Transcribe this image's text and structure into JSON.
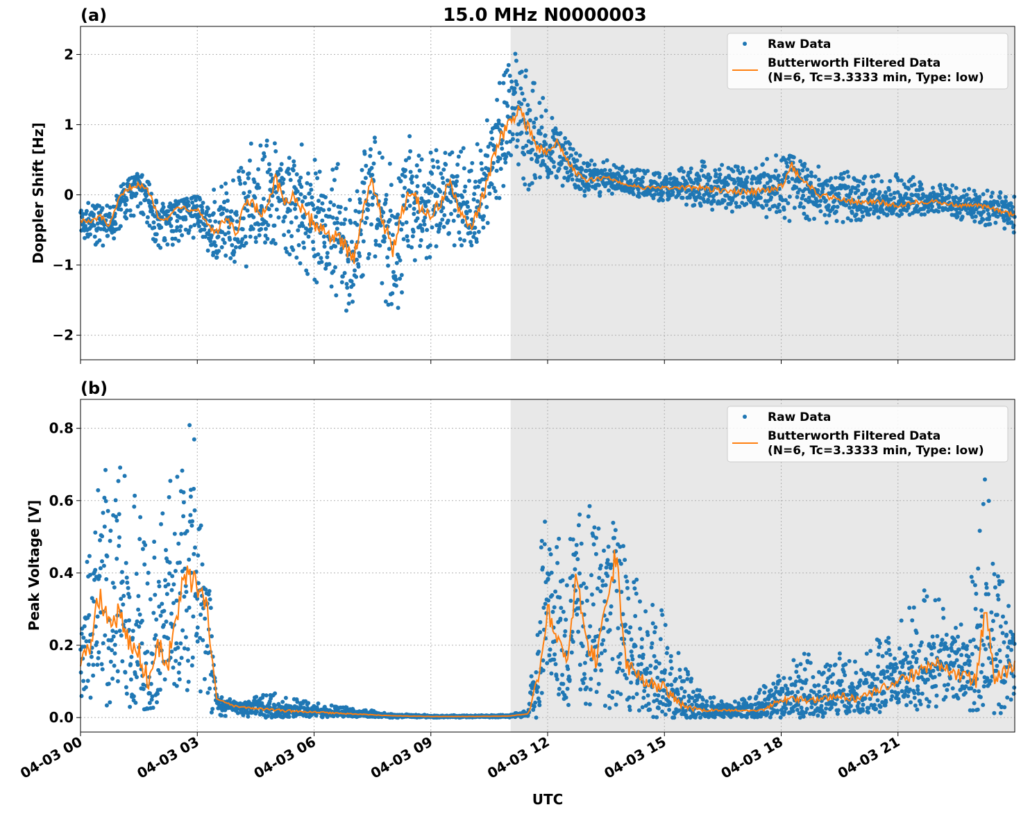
{
  "figure": {
    "title": "15.0 MHz N0000003",
    "xlabel": "UTC",
    "x_tick_labels": [
      "04-03 00",
      "04-03 03",
      "04-03 06",
      "04-03 09",
      "04-03 12",
      "04-03 15",
      "04-03 18",
      "04-03 21"
    ],
    "colors": {
      "raw": "#1f77b4",
      "filtered": "#ff7f0e",
      "shade": "#e8e8e8",
      "grid": "#b0b0b0"
    }
  },
  "chart_data": [
    {
      "type": "scatter",
      "panel_label": "(a)",
      "ylabel": "Doppler Shift [Hz]",
      "xlim_hours": [
        0,
        24
      ],
      "ylim": [
        -2.35,
        2.4
      ],
      "y_ticks": [
        -2,
        -1,
        0,
        1,
        2
      ],
      "y_tick_labels": [
        "−2",
        "−1",
        "0",
        "1",
        "2"
      ],
      "shaded_region_hours": [
        11.05,
        24
      ],
      "grid": true,
      "legend_position": "top-right",
      "legend": {
        "raw": "Raw Data",
        "filtered_line1": "Butterworth Filtered Data",
        "filtered_line2": "(N=6, Tc=3.3333 min, Type: low)"
      },
      "series": [
        {
          "name": "Butterworth Filtered Data",
          "kind": "line",
          "x_hours": [
            0,
            0.25,
            0.5,
            0.75,
            1,
            1.25,
            1.5,
            1.75,
            2,
            2.25,
            2.5,
            2.75,
            3,
            3.25,
            3.5,
            3.75,
            4,
            4.25,
            4.5,
            4.75,
            5,
            5.25,
            5.5,
            5.75,
            6,
            6.25,
            6.5,
            6.75,
            7,
            7.25,
            7.5,
            7.75,
            8,
            8.25,
            8.5,
            8.75,
            9,
            9.25,
            9.5,
            9.75,
            10,
            10.25,
            10.5,
            10.75,
            11,
            11.25,
            11.5,
            11.75,
            12,
            12.25,
            12.5,
            12.75,
            13,
            13.5,
            14,
            14.5,
            15,
            15.5,
            16,
            16.5,
            17,
            17.5,
            18,
            18.25,
            18.5,
            19,
            19.5,
            20,
            20.5,
            21,
            21.5,
            22,
            22.5,
            23,
            23.5,
            24
          ],
          "values": [
            -0.35,
            -0.4,
            -0.3,
            -0.45,
            -0.05,
            0.1,
            0.15,
            0.05,
            -0.3,
            -0.35,
            -0.15,
            -0.2,
            -0.2,
            -0.4,
            -0.55,
            -0.3,
            -0.6,
            -0.1,
            -0.2,
            -0.3,
            0.2,
            -0.1,
            0.0,
            -0.3,
            -0.4,
            -0.5,
            -0.6,
            -0.7,
            -0.95,
            -0.2,
            0.2,
            -0.3,
            -0.85,
            -0.2,
            0.1,
            -0.2,
            -0.3,
            -0.1,
            0.2,
            -0.3,
            -0.45,
            -0.2,
            0.3,
            0.8,
            1.0,
            1.2,
            1.0,
            0.65,
            0.6,
            0.75,
            0.5,
            0.3,
            0.2,
            0.25,
            0.15,
            0.1,
            0.1,
            0.1,
            0.1,
            0.05,
            0.05,
            0.05,
            0.1,
            0.45,
            0.2,
            0.0,
            -0.05,
            -0.1,
            -0.1,
            -0.15,
            -0.1,
            -0.1,
            -0.15,
            -0.15,
            -0.2,
            -0.3
          ]
        },
        {
          "name": "Raw Data",
          "kind": "band",
          "x_hours": [
            0,
            0.5,
            1,
            1.5,
            2,
            2.5,
            3,
            3.5,
            4,
            4.5,
            5,
            5.5,
            6,
            6.5,
            7,
            7.5,
            8,
            8.5,
            9,
            9.5,
            10,
            10.5,
            11,
            11.5,
            12,
            12.5,
            13,
            13.5,
            14,
            15,
            16,
            17,
            18,
            19,
            20,
            21,
            22,
            23,
            24
          ],
          "upper": [
            0.0,
            -0.1,
            0.1,
            0.35,
            0.0,
            -0.1,
            0.0,
            0.1,
            0.3,
            0.9,
            1.0,
            0.8,
            0.6,
            0.6,
            0.3,
            0.9,
            0.5,
            0.9,
            0.6,
            0.8,
            0.6,
            1.2,
            2.1,
            2.0,
            1.2,
            0.8,
            0.5,
            0.5,
            0.4,
            0.3,
            0.5,
            0.4,
            0.6,
            0.4,
            0.3,
            0.3,
            0.2,
            0.1,
            0.0
          ],
          "lower": [
            -0.65,
            -0.75,
            -0.6,
            -0.2,
            -0.8,
            -0.7,
            -0.6,
            -1.0,
            -1.2,
            -1.0,
            -0.8,
            -0.9,
            -1.3,
            -1.4,
            -1.8,
            -0.7,
            -2.0,
            -1.0,
            -0.9,
            -0.7,
            -0.8,
            -0.5,
            0.3,
            0.0,
            0.2,
            0.1,
            -0.05,
            0.0,
            0.0,
            -0.1,
            -0.2,
            -0.3,
            -0.4,
            -0.4,
            -0.4,
            -0.3,
            -0.3,
            -0.4,
            -0.55
          ]
        }
      ]
    },
    {
      "type": "scatter",
      "panel_label": "(b)",
      "ylabel": "Peak Voltage [V]",
      "xlim_hours": [
        0,
        24
      ],
      "ylim": [
        -0.04,
        0.88
      ],
      "y_ticks": [
        0.0,
        0.2,
        0.4,
        0.6,
        0.8
      ],
      "y_tick_labels": [
        "0.0",
        "0.2",
        "0.4",
        "0.6",
        "0.8"
      ],
      "shaded_region_hours": [
        11.05,
        24
      ],
      "grid": true,
      "legend_position": "top-right",
      "legend": {
        "raw": "Raw Data",
        "filtered_line1": "Butterworth Filtered Data",
        "filtered_line2": "(N=6, Tc=3.3333 min, Type: low)"
      },
      "series": [
        {
          "name": "Butterworth Filtered Data",
          "kind": "line",
          "x_hours": [
            0,
            0.25,
            0.5,
            0.75,
            1,
            1.25,
            1.5,
            1.75,
            2,
            2.25,
            2.5,
            2.75,
            3,
            3.25,
            3.5,
            4,
            5,
            6,
            7,
            8,
            9,
            10,
            11,
            11.5,
            11.75,
            12,
            12.25,
            12.5,
            12.75,
            13,
            13.25,
            13.5,
            13.75,
            14,
            14.5,
            15,
            15.5,
            16,
            16.5,
            17,
            17.5,
            18,
            18.5,
            19,
            19.5,
            20,
            20.5,
            21,
            21.5,
            22,
            22.5,
            23,
            23.25,
            23.5,
            24
          ],
          "values": [
            0.15,
            0.2,
            0.35,
            0.25,
            0.3,
            0.2,
            0.18,
            0.1,
            0.2,
            0.15,
            0.3,
            0.4,
            0.35,
            0.3,
            0.05,
            0.03,
            0.02,
            0.015,
            0.01,
            0.005,
            0.003,
            0.003,
            0.004,
            0.01,
            0.1,
            0.3,
            0.2,
            0.15,
            0.4,
            0.2,
            0.15,
            0.3,
            0.45,
            0.15,
            0.1,
            0.08,
            0.03,
            0.02,
            0.02,
            0.02,
            0.02,
            0.05,
            0.05,
            0.05,
            0.06,
            0.05,
            0.08,
            0.1,
            0.12,
            0.15,
            0.12,
            0.1,
            0.3,
            0.1,
            0.15
          ]
        },
        {
          "name": "Raw Data",
          "kind": "band",
          "x_hours": [
            0,
            0.5,
            1,
            1.5,
            2,
            2.5,
            3,
            3.3,
            3.5,
            4,
            5,
            6,
            7,
            8,
            9,
            10,
            11,
            11.5,
            11.75,
            12,
            12.5,
            13,
            13.5,
            13.75,
            14,
            14.5,
            15,
            15.5,
            16,
            17,
            18,
            18.5,
            19,
            19.5,
            20,
            20.5,
            21,
            21.5,
            22,
            22.5,
            23,
            23.25,
            23.5,
            24
          ],
          "upper": [
            0.33,
            0.67,
            0.74,
            0.58,
            0.52,
            0.78,
            0.83,
            0.4,
            0.06,
            0.05,
            0.07,
            0.04,
            0.03,
            0.01,
            0.007,
            0.006,
            0.008,
            0.02,
            0.45,
            0.58,
            0.48,
            0.62,
            0.48,
            0.72,
            0.45,
            0.35,
            0.3,
            0.15,
            0.06,
            0.05,
            0.12,
            0.2,
            0.14,
            0.18,
            0.17,
            0.22,
            0.25,
            0.38,
            0.33,
            0.3,
            0.45,
            0.72,
            0.4,
            0.36
          ],
          "lower": [
            0.02,
            0.02,
            0.03,
            0.02,
            0.03,
            0.04,
            0.05,
            0.02,
            0.0,
            0.0,
            0.0,
            0.0,
            0.0,
            0.0,
            0.0,
            0.0,
            0.0,
            0.0,
            0.0,
            0.05,
            0.03,
            0.02,
            0.02,
            0.03,
            0.01,
            0.0,
            0.0,
            0.0,
            0.0,
            0.0,
            0.0,
            0.0,
            0.0,
            0.01,
            0.01,
            0.01,
            0.02,
            0.02,
            0.03,
            0.02,
            0.02,
            0.03,
            0.01,
            0.01
          ]
        }
      ]
    }
  ]
}
